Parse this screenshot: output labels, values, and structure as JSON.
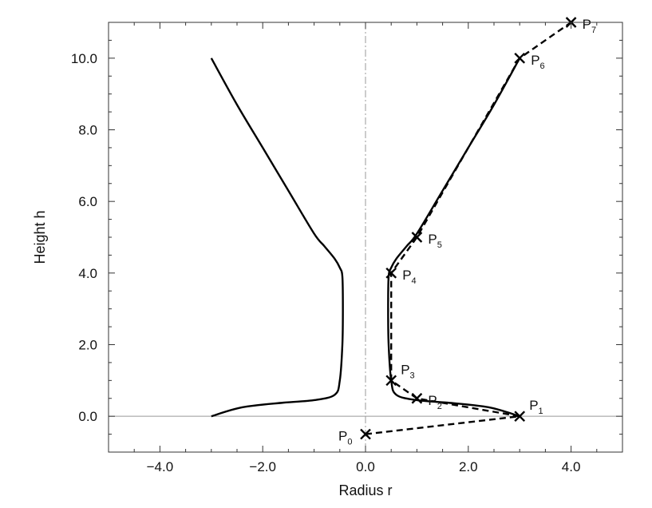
{
  "chart_data": {
    "type": "line",
    "title": "",
    "xlabel": "Radius r",
    "ylabel": "Height h",
    "xlim": [
      -5,
      5
    ],
    "ylim": [
      -1,
      11
    ],
    "xticks": [
      -4,
      -2,
      0,
      2,
      4
    ],
    "xtick_labels": [
      "−4.0",
      "−2.0",
      "0.0",
      "2.0",
      "4.0"
    ],
    "yticks": [
      0,
      2,
      4,
      6,
      8,
      10
    ],
    "ytick_labels": [
      "0.0",
      "2.0",
      "4.0",
      "6.0",
      "8.0",
      "10.0"
    ],
    "minor_tick_step": 0.5,
    "grid": false,
    "reference_lines": {
      "vertical_dashdot_x": 0,
      "horizontal_solid_y": 0
    },
    "series": [
      {
        "style": "solid",
        "description_role": "profile_right",
        "x": [
          3.0,
          2.4,
          1.6,
          1.0,
          0.6,
          0.5,
          0.45,
          0.44,
          0.45,
          0.5,
          0.6,
          0.8,
          1.0,
          1.5,
          2.0,
          2.5,
          3.0
        ],
        "y": [
          0.0,
          0.25,
          0.38,
          0.45,
          0.6,
          1.0,
          2.0,
          3.0,
          3.9,
          4.15,
          4.4,
          4.75,
          5.1,
          6.3,
          7.5,
          8.7,
          10.0
        ]
      },
      {
        "style": "solid",
        "description_role": "profile_left",
        "x": [
          -3.0,
          -2.4,
          -1.6,
          -1.0,
          -0.6,
          -0.5,
          -0.45,
          -0.44,
          -0.45,
          -0.5,
          -0.6,
          -0.8,
          -1.0,
          -1.5,
          -2.0,
          -2.5,
          -3.0
        ],
        "y": [
          0.0,
          0.25,
          0.38,
          0.45,
          0.6,
          1.0,
          2.0,
          3.0,
          3.9,
          4.15,
          4.4,
          4.75,
          5.1,
          6.3,
          7.5,
          8.7,
          10.0
        ]
      },
      {
        "style": "dashed",
        "description_role": "control_polygon",
        "x": [
          0,
          3,
          1,
          0.5,
          0.5,
          1,
          3,
          4
        ],
        "y": [
          -0.5,
          0,
          0.5,
          1,
          4,
          5,
          10,
          11
        ]
      }
    ],
    "control_points": [
      {
        "label": "P",
        "sub": "0",
        "x": 0,
        "y": -0.5,
        "anchor": "left"
      },
      {
        "label": "P",
        "sub": "1",
        "x": 3,
        "y": 0,
        "anchor": "upper-right"
      },
      {
        "label": "P",
        "sub": "2",
        "x": 1,
        "y": 0.5,
        "anchor": "right"
      },
      {
        "label": "P",
        "sub": "3",
        "x": 0.5,
        "y": 1,
        "anchor": "upper-right"
      },
      {
        "label": "P",
        "sub": "4",
        "x": 0.5,
        "y": 4,
        "anchor": "right"
      },
      {
        "label": "P",
        "sub": "5",
        "x": 1,
        "y": 5,
        "anchor": "right"
      },
      {
        "label": "P",
        "sub": "6",
        "x": 3,
        "y": 10,
        "anchor": "right"
      },
      {
        "label": "P",
        "sub": "7",
        "x": 4,
        "y": 11,
        "anchor": "right"
      }
    ],
    "colors": {
      "line": "#000000",
      "axes": "#333333",
      "reference": "#999999"
    }
  }
}
